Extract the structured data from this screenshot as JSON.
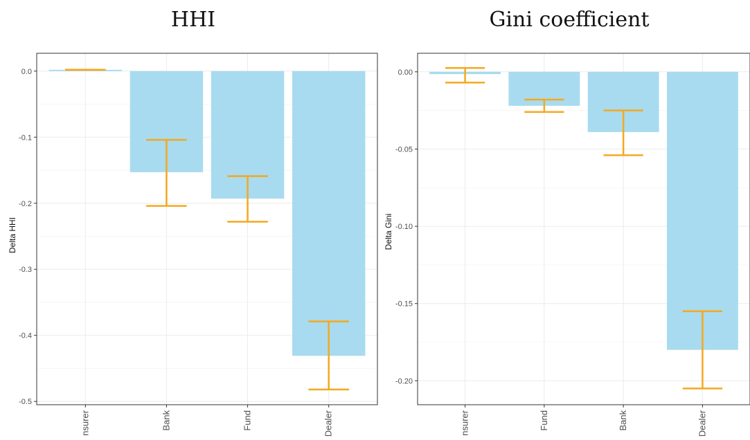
{
  "chart_data": [
    {
      "type": "bar",
      "title": "HHI",
      "xlabel": "",
      "ylabel": "Delta HHI",
      "categories": [
        "Insurer",
        "Bank",
        "Fund",
        "Dealer"
      ],
      "values": [
        0.002,
        -0.153,
        -0.193,
        -0.431
      ],
      "error_low": [
        0.002,
        -0.204,
        -0.228,
        -0.482
      ],
      "error_high": [
        0.002,
        -0.104,
        -0.159,
        -0.379
      ],
      "ylim": [
        -0.505,
        0.027
      ],
      "yticks": [
        0.0,
        -0.1,
        -0.2,
        -0.3,
        -0.4,
        -0.5
      ],
      "ytick_labels": [
        "0.0",
        "-0.1",
        "-0.2",
        "-0.3",
        "-0.4",
        "-0.5"
      ],
      "bar_color": "#a8dbef",
      "error_color": "#f5a81d",
      "grid": true
    },
    {
      "type": "bar",
      "title": "Gini coefficient",
      "xlabel": "",
      "ylabel": "Delta Gini",
      "categories": [
        "Insurer",
        "Fund",
        "Bank",
        "Dealer"
      ],
      "values": [
        -0.0015,
        -0.022,
        -0.039,
        -0.18
      ],
      "error_low": [
        -0.007,
        -0.026,
        -0.054,
        -0.205
      ],
      "error_high": [
        0.0025,
        -0.018,
        -0.025,
        -0.155
      ],
      "ylim": [
        -0.2155,
        0.012
      ],
      "yticks": [
        0.0,
        -0.05,
        -0.1,
        -0.15,
        -0.2
      ],
      "ytick_labels": [
        "0.00",
        "-0.05",
        "-0.10",
        "-0.15",
        "-0.20"
      ],
      "bar_color": "#a8dbef",
      "error_color": "#f5a81d",
      "grid": true
    }
  ]
}
